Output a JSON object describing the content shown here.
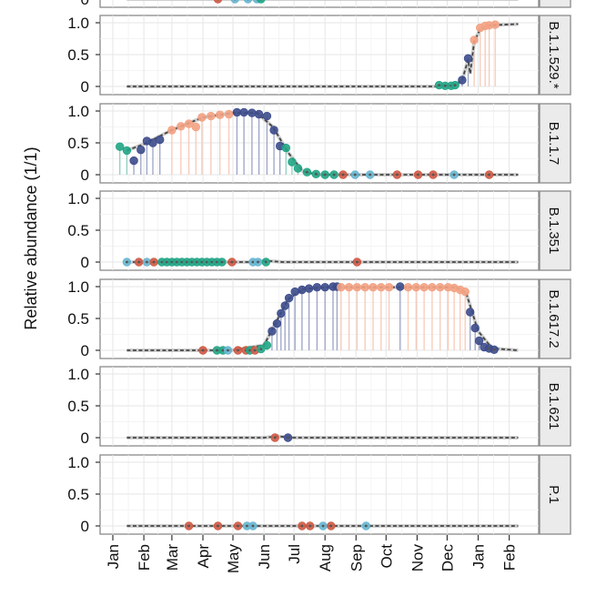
{
  "chart_data": {
    "type": "scatter",
    "ylabel": "Relative abundance (1/1)",
    "xlabel": "",
    "ylim": [
      0,
      1
    ],
    "y_ticks": [
      {
        "value": 0,
        "label": "0"
      },
      {
        "value": 0.5,
        "label": "0.5"
      },
      {
        "value": 1,
        "label": "1.0"
      }
    ],
    "x_ticks": [
      {
        "date": "2021-01-01",
        "label": "Jan"
      },
      {
        "date": "2021-02-01",
        "label": "Feb"
      },
      {
        "date": "2021-03-01",
        "label": "Mar"
      },
      {
        "date": "2021-04-01",
        "label": "Apr"
      },
      {
        "date": "2021-05-01",
        "label": "May"
      },
      {
        "date": "2021-06-01",
        "label": "Jun"
      },
      {
        "date": "2021-07-01",
        "label": "Jul"
      },
      {
        "date": "2021-08-01",
        "label": "Aug"
      },
      {
        "date": "2021-09-01",
        "label": "Sep"
      },
      {
        "date": "2021-10-01",
        "label": "Oct"
      },
      {
        "date": "2021-11-01",
        "label": "Nov"
      },
      {
        "date": "2021-12-01",
        "label": "Dec"
      },
      {
        "date": "2022-01-01",
        "label": "Jan"
      },
      {
        "date": "2022-02-01",
        "label": "Feb"
      }
    ],
    "grid": true,
    "colors": {
      "teal": "#22a585",
      "blue": "#3d4c8c",
      "salmon": "#f3a283",
      "red": "#cf5a45",
      "lightblue": "#68b6d2",
      "line": "#444444"
    },
    "panels": [
      {
        "label": "",
        "partial": true,
        "line": [
          [
            "2021-01-15",
            0
          ],
          [
            "2022-02-10",
            0
          ]
        ],
        "points": [
          [
            "2021-04-16",
            0,
            "red"
          ],
          [
            "2021-05-03",
            0,
            "lightblue"
          ],
          [
            "2021-05-16",
            0,
            "lightblue"
          ],
          [
            "2021-05-25",
            0,
            "lightblue"
          ],
          [
            "2021-05-29",
            0,
            "teal"
          ]
        ]
      },
      {
        "label": "B.1.1.529.*",
        "line": [
          [
            "2021-01-15",
            0
          ],
          [
            "2021-11-20",
            0
          ],
          [
            "2021-12-10",
            0.03
          ],
          [
            "2021-12-16",
            0.1
          ],
          [
            "2021-12-22",
            0.42
          ],
          [
            "2021-12-24",
            0.2
          ],
          [
            "2021-12-28",
            0.7
          ],
          [
            "2022-01-03",
            0.9
          ],
          [
            "2022-01-12",
            0.96
          ],
          [
            "2022-02-10",
            0.98
          ]
        ],
        "points": [
          [
            "2021-11-23",
            0.02,
            "teal"
          ],
          [
            "2021-11-29",
            0.01,
            "teal"
          ],
          [
            "2021-12-05",
            0.01,
            "teal"
          ],
          [
            "2021-12-09",
            0.02,
            "teal"
          ],
          [
            "2021-12-16",
            0.1,
            "blue"
          ],
          [
            "2021-12-22",
            0.44,
            "blue"
          ],
          [
            "2021-12-28",
            0.73,
            "salmon"
          ],
          [
            "2022-01-03",
            0.92,
            "salmon"
          ],
          [
            "2022-01-08",
            0.95,
            "salmon"
          ],
          [
            "2022-01-12",
            0.96,
            "salmon"
          ],
          [
            "2022-01-18",
            0.97,
            "salmon"
          ]
        ]
      },
      {
        "label": "B.1.1.7",
        "line": [
          [
            "2021-01-15",
            0.38
          ],
          [
            "2021-02-01",
            0.48
          ],
          [
            "2021-03-01",
            0.7
          ],
          [
            "2021-04-01",
            0.9
          ],
          [
            "2021-05-01",
            0.97
          ],
          [
            "2021-05-25",
            0.97
          ],
          [
            "2021-06-10",
            0.75
          ],
          [
            "2021-06-25",
            0.35
          ],
          [
            "2021-07-10",
            0.05
          ],
          [
            "2021-07-25",
            0
          ],
          [
            "2022-02-10",
            0
          ]
        ],
        "points": [
          [
            "2021-01-08",
            0.44,
            "teal"
          ],
          [
            "2021-01-15",
            0.38,
            "teal"
          ],
          [
            "2021-01-22",
            0.22,
            "blue"
          ],
          [
            "2021-01-29",
            0.39,
            "blue"
          ],
          [
            "2021-02-04",
            0.53,
            "blue"
          ],
          [
            "2021-02-10",
            0.5,
            "blue"
          ],
          [
            "2021-02-17",
            0.55,
            "blue"
          ],
          [
            "2021-03-01",
            0.7,
            "salmon"
          ],
          [
            "2021-03-10",
            0.76,
            "salmon"
          ],
          [
            "2021-03-18",
            0.8,
            "salmon"
          ],
          [
            "2021-03-25",
            0.75,
            "salmon"
          ],
          [
            "2021-03-31",
            0.9,
            "salmon"
          ],
          [
            "2021-04-09",
            0.92,
            "salmon"
          ],
          [
            "2021-04-18",
            0.94,
            "salmon"
          ],
          [
            "2021-04-27",
            0.95,
            "salmon"
          ],
          [
            "2021-05-05",
            0.98,
            "blue"
          ],
          [
            "2021-05-12",
            0.98,
            "blue"
          ],
          [
            "2021-05-20",
            0.97,
            "blue"
          ],
          [
            "2021-05-27",
            0.95,
            "blue"
          ],
          [
            "2021-06-04",
            0.92,
            "blue"
          ],
          [
            "2021-06-11",
            0.7,
            "blue"
          ],
          [
            "2021-06-17",
            0.45,
            "blue"
          ],
          [
            "2021-06-23",
            0.42,
            "teal"
          ],
          [
            "2021-06-29",
            0.2,
            "teal"
          ],
          [
            "2021-07-05",
            0.1,
            "teal"
          ],
          [
            "2021-07-14",
            0.04,
            "teal"
          ],
          [
            "2021-07-23",
            0.01,
            "teal"
          ],
          [
            "2021-08-01",
            0,
            "teal"
          ],
          [
            "2021-08-10",
            0,
            "teal"
          ],
          [
            "2021-08-19",
            0,
            "red"
          ],
          [
            "2021-08-31",
            0,
            "lightblue"
          ],
          [
            "2021-09-15",
            0,
            "lightblue"
          ],
          [
            "2021-10-12",
            0,
            "red"
          ],
          [
            "2021-11-02",
            0,
            "red"
          ],
          [
            "2021-11-17",
            0,
            "red"
          ],
          [
            "2021-12-08",
            0,
            "lightblue"
          ],
          [
            "2022-01-12",
            0,
            "red"
          ]
        ]
      },
      {
        "label": "B.1.351",
        "line": [
          [
            "2021-01-15",
            0
          ],
          [
            "2021-05-20",
            0
          ],
          [
            "2021-06-03",
            0.02
          ],
          [
            "2021-06-20",
            0
          ],
          [
            "2022-02-10",
            0
          ]
        ],
        "points": [
          [
            "2021-01-15",
            0,
            "lightblue"
          ],
          [
            "2021-01-27",
            0,
            "red"
          ],
          [
            "2021-02-04",
            0,
            "lightblue"
          ],
          [
            "2021-02-11",
            0,
            "red"
          ],
          [
            "2021-02-19",
            0,
            "teal"
          ],
          [
            "2021-02-24",
            0,
            "teal"
          ],
          [
            "2021-03-01",
            0,
            "teal"
          ],
          [
            "2021-03-06",
            0,
            "teal"
          ],
          [
            "2021-03-11",
            0,
            "teal"
          ],
          [
            "2021-03-16",
            0,
            "teal"
          ],
          [
            "2021-03-21",
            0,
            "teal"
          ],
          [
            "2021-03-26",
            0,
            "teal"
          ],
          [
            "2021-03-31",
            0,
            "teal"
          ],
          [
            "2021-04-05",
            0,
            "teal"
          ],
          [
            "2021-04-10",
            0,
            "teal"
          ],
          [
            "2021-04-15",
            0,
            "teal"
          ],
          [
            "2021-04-20",
            0,
            "teal"
          ],
          [
            "2021-04-30",
            0,
            "red"
          ],
          [
            "2021-05-21",
            0,
            "lightblue"
          ],
          [
            "2021-05-26",
            0,
            "lightblue"
          ],
          [
            "2021-06-03",
            0,
            "teal"
          ],
          [
            "2021-09-02",
            0,
            "red"
          ]
        ]
      },
      {
        "label": "B.1.617.2",
        "line": [
          [
            "2021-01-15",
            0
          ],
          [
            "2021-04-30",
            0
          ],
          [
            "2021-06-01",
            0.08
          ],
          [
            "2021-06-10",
            0.35
          ],
          [
            "2021-06-25",
            0.8
          ],
          [
            "2021-07-10",
            0.96
          ],
          [
            "2021-08-01",
            0.99
          ],
          [
            "2021-12-10",
            0.99
          ],
          [
            "2021-12-20",
            0.9
          ],
          [
            "2022-01-01",
            0.3
          ],
          [
            "2022-01-15",
            0.03
          ],
          [
            "2022-02-10",
            0
          ]
        ],
        "points": [
          [
            "2021-04-01",
            0,
            "red"
          ],
          [
            "2021-04-15",
            0,
            "teal"
          ],
          [
            "2021-04-21",
            0,
            "teal"
          ],
          [
            "2021-04-26",
            0,
            "lightblue"
          ],
          [
            "2021-05-06",
            0,
            "red"
          ],
          [
            "2021-05-14",
            0,
            "red"
          ],
          [
            "2021-05-18",
            0,
            "teal"
          ],
          [
            "2021-05-23",
            0,
            "red"
          ],
          [
            "2021-05-29",
            0.02,
            "teal"
          ],
          [
            "2021-06-04",
            0.08,
            "teal"
          ],
          [
            "2021-06-09",
            0.3,
            "blue"
          ],
          [
            "2021-06-14",
            0.42,
            "blue"
          ],
          [
            "2021-06-18",
            0.58,
            "blue"
          ],
          [
            "2021-06-22",
            0.7,
            "blue"
          ],
          [
            "2021-06-26",
            0.82,
            "blue"
          ],
          [
            "2021-07-02",
            0.92,
            "blue"
          ],
          [
            "2021-07-09",
            0.95,
            "blue"
          ],
          [
            "2021-07-16",
            0.97,
            "blue"
          ],
          [
            "2021-07-24",
            0.99,
            "blue"
          ],
          [
            "2021-08-01",
            0.99,
            "blue"
          ],
          [
            "2021-08-09",
            1.0,
            "blue"
          ],
          [
            "2021-08-13",
            1.0,
            "blue"
          ],
          [
            "2021-08-17",
            0.99,
            "salmon"
          ],
          [
            "2021-08-25",
            0.99,
            "salmon"
          ],
          [
            "2021-09-02",
            0.99,
            "salmon"
          ],
          [
            "2021-09-10",
            0.99,
            "salmon"
          ],
          [
            "2021-09-18",
            0.99,
            "salmon"
          ],
          [
            "2021-09-26",
            0.99,
            "salmon"
          ],
          [
            "2021-10-04",
            0.99,
            "salmon"
          ],
          [
            "2021-10-15",
            1.0,
            "blue"
          ],
          [
            "2021-10-23",
            0.99,
            "salmon"
          ],
          [
            "2021-10-31",
            0.99,
            "salmon"
          ],
          [
            "2021-11-08",
            0.99,
            "salmon"
          ],
          [
            "2021-11-16",
            0.99,
            "salmon"
          ],
          [
            "2021-11-24",
            0.99,
            "salmon"
          ],
          [
            "2021-12-02",
            0.99,
            "salmon"
          ],
          [
            "2021-12-08",
            0.98,
            "salmon"
          ],
          [
            "2021-12-14",
            0.95,
            "salmon"
          ],
          [
            "2021-12-19",
            0.92,
            "salmon"
          ],
          [
            "2021-12-24",
            0.6,
            "blue"
          ],
          [
            "2021-12-29",
            0.35,
            "blue"
          ],
          [
            "2022-01-02",
            0.15,
            "blue"
          ],
          [
            "2022-01-07",
            0.05,
            "blue"
          ],
          [
            "2022-01-12",
            0.03,
            "blue"
          ],
          [
            "2022-01-17",
            0.01,
            "blue"
          ]
        ]
      },
      {
        "label": "B.1.621",
        "line": [
          [
            "2021-01-15",
            0
          ],
          [
            "2021-06-01",
            0
          ],
          [
            "2021-06-15",
            0.02
          ],
          [
            "2021-07-01",
            0
          ],
          [
            "2022-02-10",
            0
          ]
        ],
        "points": [
          [
            "2021-06-12",
            0,
            "red"
          ],
          [
            "2021-06-25",
            0,
            "blue"
          ]
        ]
      },
      {
        "label": "P.1",
        "line": [
          [
            "2021-01-15",
            0
          ],
          [
            "2022-02-10",
            0
          ]
        ],
        "points": [
          [
            "2021-03-18",
            0,
            "red"
          ],
          [
            "2021-04-16",
            0,
            "red"
          ],
          [
            "2021-05-06",
            0,
            "red"
          ],
          [
            "2021-05-15",
            0,
            "lightblue"
          ],
          [
            "2021-05-21",
            0,
            "lightblue"
          ],
          [
            "2021-07-09",
            0,
            "red"
          ],
          [
            "2021-07-17",
            0,
            "red"
          ],
          [
            "2021-07-30",
            0,
            "lightblue"
          ],
          [
            "2021-08-07",
            0,
            "red"
          ],
          [
            "2021-09-11",
            0,
            "lightblue"
          ]
        ]
      }
    ]
  }
}
